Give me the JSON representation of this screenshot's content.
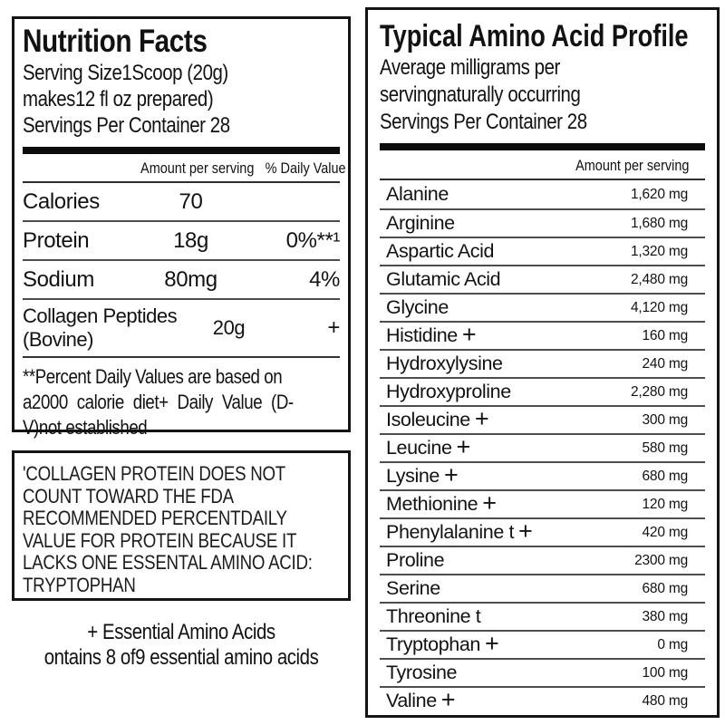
{
  "colors": {
    "text": "#121212",
    "border": "#141414",
    "separator": "#4d4d4d",
    "bar": "#0c0c0c"
  },
  "nutrition_facts": {
    "title": "Nutrition Facts",
    "serving_lines": [
      "Serving Size1Scoop (20g)",
      "makes12 fl oz prepared)",
      "Servings Per Container 28"
    ],
    "columns": {
      "amount": "Amount per serving",
      "daily_value": "% Daily Value"
    },
    "rows": [
      {
        "name": "Calories",
        "amount": "70",
        "dv": ""
      },
      {
        "name": "Protein",
        "amount": "18g",
        "dv": "0%**¹"
      },
      {
        "name": "Sodium",
        "amount": "80mg",
        "dv": "4%"
      },
      {
        "name": "Collagen Peptides (Bovine)",
        "amount": "20g",
        "dv": "+"
      }
    ],
    "footnote_lines": [
      "**Percent Daily Values are based on",
      "a2000 calorie diet+ Daily Value (D-",
      "V)not established"
    ]
  },
  "disclaimer_lines": [
    "'COLLAGEN PROTEIN DOES NOT",
    "COUNT TOWARD THE FDA",
    "RECOMMENDED PERCENTDAILY",
    "VALUE FOR PROTEIN BECAUSE IT",
    "LACKS ONE ESSENTAL AMINO ACID:",
    "TRYPTOPHAN"
  ],
  "essential_note_lines": [
    "+ Essential Amino Acids",
    "ontains 8 of9 essential amino acids"
  ],
  "amino_profile": {
    "title": "Typical Amino Acid Profile",
    "subtitle_lines": [
      "Average milligrams per",
      "servingnaturally occurring",
      "Servings Per Container 28"
    ],
    "columns": {
      "amount": "Amount per serving"
    },
    "rows": [
      {
        "name": "Alanine",
        "marker": "",
        "amount": "1,620 mg"
      },
      {
        "name": "Arginine",
        "marker": "",
        "amount": "1,680 mg"
      },
      {
        "name": "Aspartic Acid",
        "marker": "",
        "amount": "1,320 mg"
      },
      {
        "name": "Glutamic Acid",
        "marker": "",
        "amount": "2,480 mg"
      },
      {
        "name": "Glycine",
        "marker": "",
        "amount": "4,120 mg"
      },
      {
        "name": "Histidine",
        "marker": "+",
        "amount": "160 mg"
      },
      {
        "name": "Hydroxylysine",
        "marker": "",
        "amount": "240 mg"
      },
      {
        "name": "Hydroxyproline",
        "marker": "",
        "amount": "2,280 mg"
      },
      {
        "name": "Isoleucine",
        "marker": "+",
        "amount": "300 mg"
      },
      {
        "name": "Leucine",
        "marker": "+",
        "amount": "580 mg"
      },
      {
        "name": "Lysine",
        "marker": "+",
        "amount": "680 mg"
      },
      {
        "name": "Methionine",
        "marker": "+",
        "amount": "120 mg"
      },
      {
        "name": "Phenylalanine t",
        "marker": "+",
        "amount": "420 mg"
      },
      {
        "name": "Proline",
        "marker": "",
        "amount": "2300 mg"
      },
      {
        "name": "Serine",
        "marker": "",
        "amount": "680 mg"
      },
      {
        "name": "Threonine t",
        "marker": "",
        "amount": "380 mg"
      },
      {
        "name": "Tryptophan",
        "marker": "+",
        "amount": "0 mg"
      },
      {
        "name": "Tyrosine",
        "marker": "",
        "amount": "100 mg"
      },
      {
        "name": "Valine",
        "marker": "+",
        "amount": "480 mg"
      }
    ]
  }
}
